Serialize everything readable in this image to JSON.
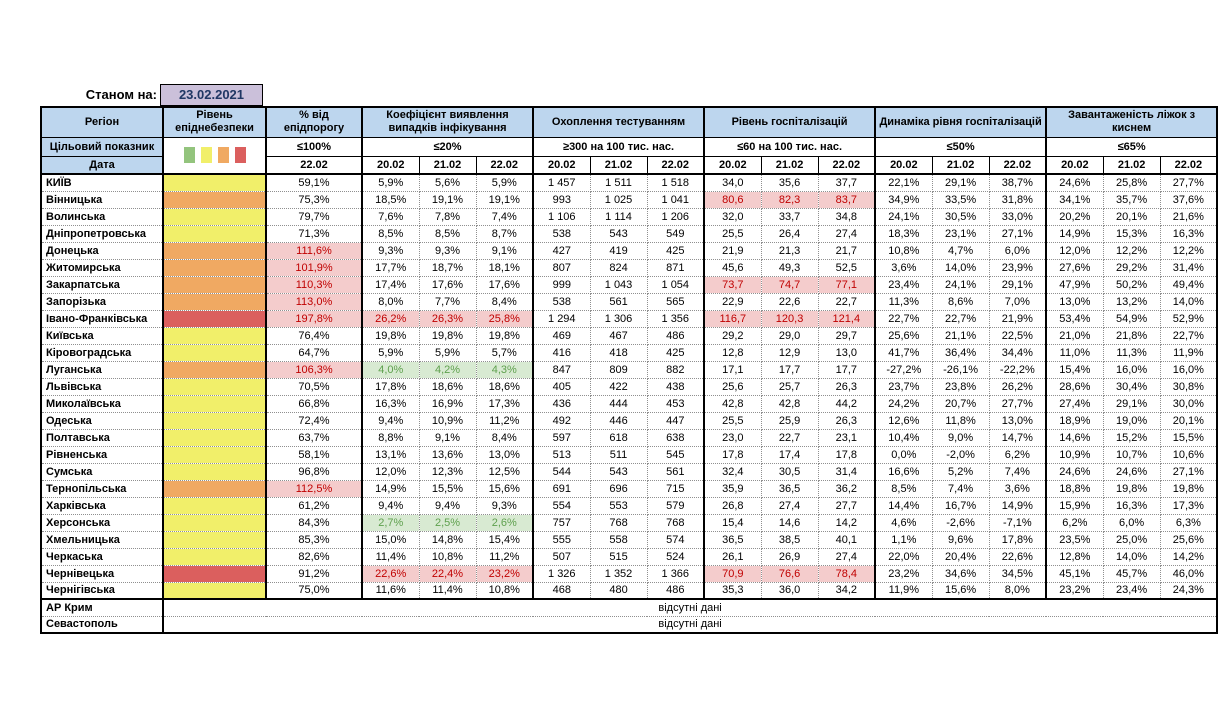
{
  "meta": {
    "as_of_label": "Станом на:",
    "as_of_date": "23.02.2021"
  },
  "header": {
    "region": "Регіон",
    "target_label": "Цільовий показник",
    "date_label": "Дата",
    "single_date": "22.02",
    "dates": [
      "20.02",
      "21.02",
      "22.02"
    ],
    "groups": [
      {
        "label": "Рівень епіднебезпеки",
        "target": ""
      },
      {
        "label": "% від епідпорогу",
        "target": "≤100%"
      },
      {
        "label": "Коефіцієнт виявлення випадків інфікування",
        "target": "≤20%"
      },
      {
        "label": "Охоплення тестуванням",
        "target": "≥300 на 100 тис. нас."
      },
      {
        "label": "Рівень госпіталізацій",
        "target": "≤60 на 100 тис. нас."
      },
      {
        "label": "Динаміка рівня госпіталізацій",
        "target": "≤50%"
      },
      {
        "label": "Завантаженість ліжок з киснем",
        "target": "≤65%"
      }
    ]
  },
  "legend": {
    "order": [
      "green",
      "yellow",
      "orange",
      "red"
    ],
    "colors": {
      "green": "#93c47d",
      "yellow": "#f1ef6a",
      "orange": "#f0a962",
      "red": "#db5f5e"
    }
  },
  "no_data_text": "відсутні дані",
  "no_data_rows": [
    {
      "region": "АР Крим"
    },
    {
      "region": "Севастополь"
    }
  ],
  "rows": [
    {
      "region": "КИЇВ",
      "level": "yellow",
      "pct": "59,1%",
      "det": [
        "5,9%",
        "5,6%",
        "5,9%"
      ],
      "test": [
        "1 457",
        "1 511",
        "1 518"
      ],
      "hosp": [
        "34,0",
        "35,6",
        "37,7"
      ],
      "dyn": [
        "22,1%",
        "29,1%",
        "38,7%"
      ],
      "beds": [
        "24,6%",
        "25,8%",
        "27,7%"
      ],
      "flags": {}
    },
    {
      "region": "Вінницька",
      "level": "orange",
      "pct": "75,3%",
      "det": [
        "18,5%",
        "19,1%",
        "19,1%"
      ],
      "test": [
        "993",
        "1 025",
        "1 041"
      ],
      "hosp": [
        "80,6",
        "82,3",
        "83,7"
      ],
      "dyn": [
        "34,9%",
        "33,5%",
        "31,8%"
      ],
      "beds": [
        "34,1%",
        "35,7%",
        "37,6%"
      ],
      "flags": {
        "hosp": "bad"
      }
    },
    {
      "region": "Волинська",
      "level": "yellow",
      "pct": "79,7%",
      "det": [
        "7,6%",
        "7,8%",
        "7,4%"
      ],
      "test": [
        "1 106",
        "1 114",
        "1 206"
      ],
      "hosp": [
        "32,0",
        "33,7",
        "34,8"
      ],
      "dyn": [
        "24,1%",
        "30,5%",
        "33,0%"
      ],
      "beds": [
        "20,2%",
        "20,1%",
        "21,6%"
      ],
      "flags": {}
    },
    {
      "region": "Дніпропетровська",
      "level": "yellow",
      "pct": "71,3%",
      "det": [
        "8,5%",
        "8,5%",
        "8,7%"
      ],
      "test": [
        "538",
        "543",
        "549"
      ],
      "hosp": [
        "25,5",
        "26,4",
        "27,4"
      ],
      "dyn": [
        "18,3%",
        "23,1%",
        "27,1%"
      ],
      "beds": [
        "14,9%",
        "15,3%",
        "16,3%"
      ],
      "flags": {}
    },
    {
      "region": "Донецька",
      "level": "orange",
      "pct": "111,6%",
      "det": [
        "9,3%",
        "9,3%",
        "9,1%"
      ],
      "test": [
        "427",
        "419",
        "425"
      ],
      "hosp": [
        "21,9",
        "21,3",
        "21,7"
      ],
      "dyn": [
        "10,8%",
        "4,7%",
        "6,0%"
      ],
      "beds": [
        "12,0%",
        "12,2%",
        "12,2%"
      ],
      "flags": {
        "pct": "bad"
      }
    },
    {
      "region": "Житомирська",
      "level": "orange",
      "pct": "101,9%",
      "det": [
        "17,7%",
        "18,7%",
        "18,1%"
      ],
      "test": [
        "807",
        "824",
        "871"
      ],
      "hosp": [
        "45,6",
        "49,3",
        "52,5"
      ],
      "dyn": [
        "3,6%",
        "14,0%",
        "23,9%"
      ],
      "beds": [
        "27,6%",
        "29,2%",
        "31,4%"
      ],
      "flags": {
        "pct": "bad"
      }
    },
    {
      "region": "Закарпатська",
      "level": "orange",
      "pct": "110,3%",
      "det": [
        "17,4%",
        "17,6%",
        "17,6%"
      ],
      "test": [
        "999",
        "1 043",
        "1 054"
      ],
      "hosp": [
        "73,7",
        "74,7",
        "77,1"
      ],
      "dyn": [
        "23,4%",
        "24,1%",
        "29,1%"
      ],
      "beds": [
        "47,9%",
        "50,2%",
        "49,4%"
      ],
      "flags": {
        "pct": "bad",
        "hosp": "bad"
      }
    },
    {
      "region": "Запорізька",
      "level": "orange",
      "pct": "113,0%",
      "det": [
        "8,0%",
        "7,7%",
        "8,4%"
      ],
      "test": [
        "538",
        "561",
        "565"
      ],
      "hosp": [
        "22,9",
        "22,6",
        "22,7"
      ],
      "dyn": [
        "11,3%",
        "8,6%",
        "7,0%"
      ],
      "beds": [
        "13,0%",
        "13,2%",
        "14,0%"
      ],
      "flags": {
        "pct": "bad"
      }
    },
    {
      "region": "Івано-Франківська",
      "level": "red",
      "pct": "197,8%",
      "det": [
        "26,2%",
        "26,3%",
        "25,8%"
      ],
      "test": [
        "1 294",
        "1 306",
        "1 356"
      ],
      "hosp": [
        "116,7",
        "120,3",
        "121,4"
      ],
      "dyn": [
        "22,7%",
        "22,7%",
        "21,9%"
      ],
      "beds": [
        "53,4%",
        "54,9%",
        "52,9%"
      ],
      "flags": {
        "pct": "bad",
        "det": "bad",
        "hosp": "bad"
      }
    },
    {
      "region": "Київська",
      "level": "yellow",
      "pct": "76,4%",
      "det": [
        "19,8%",
        "19,8%",
        "19,8%"
      ],
      "test": [
        "469",
        "467",
        "486"
      ],
      "hosp": [
        "29,2",
        "29,0",
        "29,7"
      ],
      "dyn": [
        "25,6%",
        "21,1%",
        "22,5%"
      ],
      "beds": [
        "21,0%",
        "21,8%",
        "22,7%"
      ],
      "flags": {}
    },
    {
      "region": "Кіровоградська",
      "level": "yellow",
      "pct": "64,7%",
      "det": [
        "5,9%",
        "5,9%",
        "5,7%"
      ],
      "test": [
        "416",
        "418",
        "425"
      ],
      "hosp": [
        "12,8",
        "12,9",
        "13,0"
      ],
      "dyn": [
        "41,7%",
        "36,4%",
        "34,4%"
      ],
      "beds": [
        "11,0%",
        "11,3%",
        "11,9%"
      ],
      "flags": {}
    },
    {
      "region": "Луганська",
      "level": "orange",
      "pct": "106,3%",
      "det": [
        "4,0%",
        "4,2%",
        "4,3%"
      ],
      "test": [
        "847",
        "809",
        "882"
      ],
      "hosp": [
        "17,1",
        "17,7",
        "17,7"
      ],
      "dyn": [
        "-27,2%",
        "-26,1%",
        "-22,2%"
      ],
      "beds": [
        "15,4%",
        "16,0%",
        "16,0%"
      ],
      "flags": {
        "pct": "bad",
        "det": "good"
      }
    },
    {
      "region": "Львівська",
      "level": "yellow",
      "pct": "70,5%",
      "det": [
        "17,8%",
        "18,6%",
        "18,6%"
      ],
      "test": [
        "405",
        "422",
        "438"
      ],
      "hosp": [
        "25,6",
        "25,7",
        "26,3"
      ],
      "dyn": [
        "23,7%",
        "23,8%",
        "26,2%"
      ],
      "beds": [
        "28,6%",
        "30,4%",
        "30,8%"
      ],
      "flags": {}
    },
    {
      "region": "Миколаївська",
      "level": "yellow",
      "pct": "66,8%",
      "det": [
        "16,3%",
        "16,9%",
        "17,3%"
      ],
      "test": [
        "436",
        "444",
        "453"
      ],
      "hosp": [
        "42,8",
        "42,8",
        "44,2"
      ],
      "dyn": [
        "24,2%",
        "20,7%",
        "27,7%"
      ],
      "beds": [
        "27,4%",
        "29,1%",
        "30,0%"
      ],
      "flags": {}
    },
    {
      "region": "Одеська",
      "level": "yellow",
      "pct": "72,4%",
      "det": [
        "9,4%",
        "10,9%",
        "11,2%"
      ],
      "test": [
        "492",
        "446",
        "447"
      ],
      "hosp": [
        "25,5",
        "25,9",
        "26,3"
      ],
      "dyn": [
        "12,6%",
        "11,8%",
        "13,0%"
      ],
      "beds": [
        "18,9%",
        "19,0%",
        "20,1%"
      ],
      "flags": {}
    },
    {
      "region": "Полтавська",
      "level": "yellow",
      "pct": "63,7%",
      "det": [
        "8,8%",
        "9,1%",
        "8,4%"
      ],
      "test": [
        "597",
        "618",
        "638"
      ],
      "hosp": [
        "23,0",
        "22,7",
        "23,1"
      ],
      "dyn": [
        "10,4%",
        "9,0%",
        "14,7%"
      ],
      "beds": [
        "14,6%",
        "15,2%",
        "15,5%"
      ],
      "flags": {}
    },
    {
      "region": "Рівненська",
      "level": "yellow",
      "pct": "58,1%",
      "det": [
        "13,1%",
        "13,6%",
        "13,0%"
      ],
      "test": [
        "513",
        "511",
        "545"
      ],
      "hosp": [
        "17,8",
        "17,4",
        "17,8"
      ],
      "dyn": [
        "0,0%",
        "-2,0%",
        "6,2%"
      ],
      "beds": [
        "10,9%",
        "10,7%",
        "10,6%"
      ],
      "flags": {}
    },
    {
      "region": "Сумська",
      "level": "yellow",
      "pct": "96,8%",
      "det": [
        "12,0%",
        "12,3%",
        "12,5%"
      ],
      "test": [
        "544",
        "543",
        "561"
      ],
      "hosp": [
        "32,4",
        "30,5",
        "31,4"
      ],
      "dyn": [
        "16,6%",
        "5,2%",
        "7,4%"
      ],
      "beds": [
        "24,6%",
        "24,6%",
        "27,1%"
      ],
      "flags": {}
    },
    {
      "region": "Тернопільська",
      "level": "orange",
      "pct": "112,5%",
      "det": [
        "14,9%",
        "15,5%",
        "15,6%"
      ],
      "test": [
        "691",
        "696",
        "715"
      ],
      "hosp": [
        "35,9",
        "36,5",
        "36,2"
      ],
      "dyn": [
        "8,5%",
        "7,4%",
        "3,6%"
      ],
      "beds": [
        "18,8%",
        "19,8%",
        "19,8%"
      ],
      "flags": {
        "pct": "bad"
      }
    },
    {
      "region": "Харківська",
      "level": "yellow",
      "pct": "61,2%",
      "det": [
        "9,4%",
        "9,4%",
        "9,3%"
      ],
      "test": [
        "554",
        "553",
        "579"
      ],
      "hosp": [
        "26,8",
        "27,4",
        "27,7"
      ],
      "dyn": [
        "14,4%",
        "16,7%",
        "14,9%"
      ],
      "beds": [
        "15,9%",
        "16,3%",
        "17,3%"
      ],
      "flags": {}
    },
    {
      "region": "Херсонська",
      "level": "yellow",
      "pct": "84,3%",
      "det": [
        "2,7%",
        "2,5%",
        "2,6%"
      ],
      "test": [
        "757",
        "768",
        "768"
      ],
      "hosp": [
        "15,4",
        "14,6",
        "14,2"
      ],
      "dyn": [
        "4,6%",
        "-2,6%",
        "-7,1%"
      ],
      "beds": [
        "6,2%",
        "6,0%",
        "6,3%"
      ],
      "flags": {
        "det": "good"
      }
    },
    {
      "region": "Хмельницька",
      "level": "yellow",
      "pct": "85,3%",
      "det": [
        "15,0%",
        "14,8%",
        "15,4%"
      ],
      "test": [
        "555",
        "558",
        "574"
      ],
      "hosp": [
        "36,5",
        "38,5",
        "40,1"
      ],
      "dyn": [
        "1,1%",
        "9,6%",
        "17,8%"
      ],
      "beds": [
        "23,5%",
        "25,0%",
        "25,6%"
      ],
      "flags": {}
    },
    {
      "region": "Черкаська",
      "level": "yellow",
      "pct": "82,6%",
      "det": [
        "11,4%",
        "10,8%",
        "11,2%"
      ],
      "test": [
        "507",
        "515",
        "524"
      ],
      "hosp": [
        "26,1",
        "26,9",
        "27,4"
      ],
      "dyn": [
        "22,0%",
        "20,4%",
        "22,6%"
      ],
      "beds": [
        "12,8%",
        "14,0%",
        "14,2%"
      ],
      "flags": {}
    },
    {
      "region": "Чернівецька",
      "level": "red",
      "pct": "91,2%",
      "det": [
        "22,6%",
        "22,4%",
        "23,2%"
      ],
      "test": [
        "1 326",
        "1 352",
        "1 366"
      ],
      "hosp": [
        "70,9",
        "76,6",
        "78,4"
      ],
      "dyn": [
        "23,2%",
        "34,6%",
        "34,5%"
      ],
      "beds": [
        "45,1%",
        "45,7%",
        "46,0%"
      ],
      "flags": {
        "det": "bad",
        "hosp": "bad"
      }
    },
    {
      "region": "Чернігівська",
      "level": "yellow",
      "pct": "75,0%",
      "det": [
        "11,6%",
        "11,4%",
        "10,8%"
      ],
      "test": [
        "468",
        "480",
        "486"
      ],
      "hosp": [
        "35,3",
        "36,0",
        "34,2"
      ],
      "dyn": [
        "11,9%",
        "15,6%",
        "8,0%"
      ],
      "beds": [
        "23,2%",
        "23,4%",
        "24,3%"
      ],
      "flags": {}
    }
  ]
}
